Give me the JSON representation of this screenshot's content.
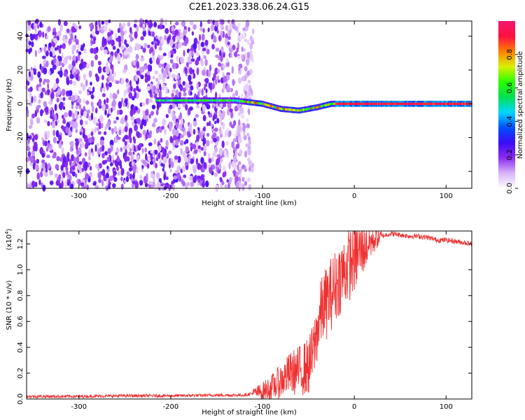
{
  "title": "C2E1.2023.338.06.24.G15",
  "chart_data": [
    {
      "type": "heatmap",
      "name": "spectrogram",
      "xlabel": "Height of straight line (km)",
      "ylabel": "Frequency (Hz)",
      "xlim": [
        -357,
        128
      ],
      "ylim": [
        -50,
        49
      ],
      "x_ticks": [
        -300,
        -200,
        -100,
        0,
        100
      ],
      "x_tick_labels": [
        "-300",
        "-200",
        "-100",
        "0",
        "100"
      ],
      "y_ticks": [
        -40,
        -20,
        0,
        20,
        40
      ],
      "y_tick_labels": [
        "-40",
        "-20",
        "0",
        "20",
        "40"
      ],
      "noise_region_x": [
        -357,
        -110
      ],
      "signal_ridge": [
        {
          "x": -215,
          "f": 2
        },
        {
          "x": -170,
          "f": 2
        },
        {
          "x": -130,
          "f": 2
        },
        {
          "x": -100,
          "f": 0
        },
        {
          "x": -80,
          "f": -3
        },
        {
          "x": -60,
          "f": -4
        },
        {
          "x": -40,
          "f": -2
        },
        {
          "x": -25,
          "f": 0
        },
        {
          "x": 0,
          "f": 0
        },
        {
          "x": 50,
          "f": 0
        },
        {
          "x": 100,
          "f": 0
        },
        {
          "x": 128,
          "f": 0
        }
      ],
      "colorbar": {
        "label": "Normalized spectral amplitude",
        "range": [
          0,
          1
        ],
        "ticks": [
          0.0,
          0.2,
          0.4,
          0.6,
          0.8
        ],
        "tick_labels": [
          "0.0",
          "0.2",
          "0.4",
          "0.6",
          "0.8"
        ],
        "colormap": [
          "#ffffff",
          "#d8b4f8",
          "#8c2cf0",
          "#3a0cf5",
          "#0050ff",
          "#00d8ff",
          "#00e050",
          "#2aff00",
          "#d8f000",
          "#ff8000",
          "#ff1040",
          "#f01870"
        ]
      }
    },
    {
      "type": "line",
      "name": "snr",
      "xlabel": "Height of straight line (km)",
      "ylabel": "SNR (10 * v/v)",
      "y_multiplier_label": "(x10",
      "y_multiplier_exp": "4",
      "y_multiplier_close": ")",
      "xlim": [
        -357,
        128
      ],
      "ylim": [
        0,
        1.3
      ],
      "x_ticks": [
        -300,
        -200,
        -100,
        0,
        100
      ],
      "x_tick_labels": [
        "-300",
        "-200",
        "-100",
        "0",
        "100"
      ],
      "y_ticks": [
        0.0,
        0.2,
        0.4,
        0.6,
        0.8,
        1.0,
        1.2
      ],
      "y_tick_labels": [
        "0.0",
        "0.2",
        "0.4",
        "0.6",
        "0.8",
        "1.0",
        "1.2"
      ],
      "color": "#f03030",
      "series": [
        {
          "x": [
            -357,
            -300,
            -250,
            -200,
            -150,
            -120,
            -100,
            -90,
            -80,
            -70,
            -60,
            -50,
            -45,
            -40,
            -35,
            -30,
            -25,
            -20,
            -15,
            -10,
            -5,
            0,
            10,
            20,
            30,
            40,
            50,
            60,
            70,
            80,
            90,
            100,
            110,
            120,
            128
          ],
          "y": [
            0.02,
            0.02,
            0.025,
            0.025,
            0.03,
            0.03,
            0.06,
            0.09,
            0.14,
            0.2,
            0.22,
            0.25,
            0.35,
            0.55,
            0.7,
            0.75,
            0.82,
            0.88,
            0.95,
            1.0,
            1.05,
            1.1,
            1.17,
            1.23,
            1.26,
            1.28,
            1.27,
            1.26,
            1.26,
            1.25,
            1.23,
            1.23,
            1.22,
            1.21,
            1.2
          ]
        }
      ]
    }
  ]
}
